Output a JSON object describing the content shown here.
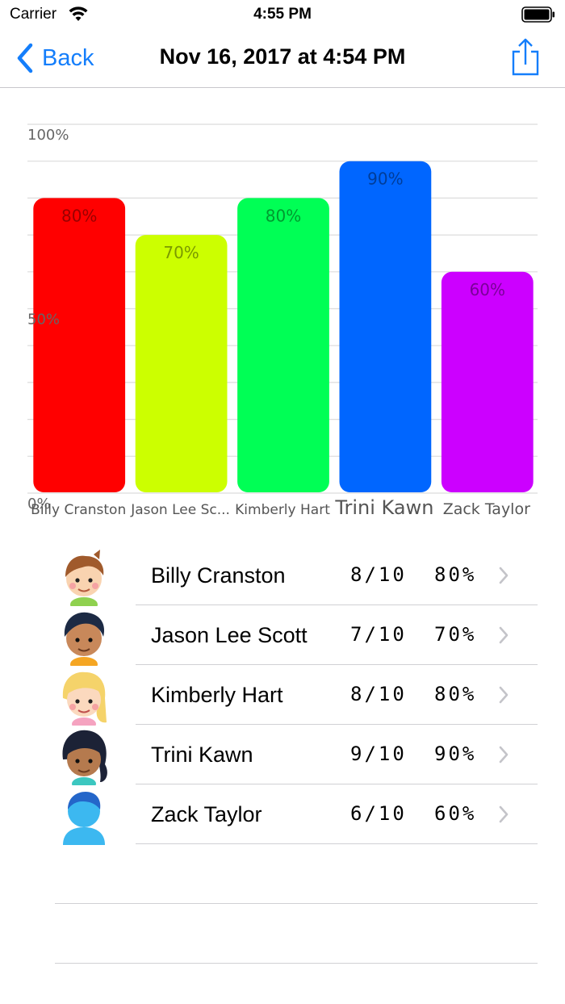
{
  "status_bar": {
    "carrier": "Carrier",
    "time": "4:55 PM"
  },
  "nav": {
    "back_label": "Back",
    "title": "Nov 16, 2017 at 4:54 PM"
  },
  "chart_data": {
    "type": "bar",
    "categories": [
      "Billy Cranston",
      "Jason Lee Sc...",
      "Kimberly Hart",
      "Trini Kawn",
      "Zack Taylor"
    ],
    "values": [
      80,
      70,
      80,
      90,
      60
    ],
    "value_labels": [
      "80%",
      "70%",
      "80%",
      "90%",
      "60%"
    ],
    "colors": [
      "#ff0000",
      "#ccff00",
      "#00ff55",
      "#0066ff",
      "#cc00ff"
    ],
    "value_label_colors": [
      "#990000",
      "#7a9900",
      "#00992f",
      "#003d99",
      "#7a0099"
    ],
    "ylim": [
      0,
      100
    ],
    "y_ticks": [
      {
        "value": 100,
        "label": "100%"
      },
      {
        "value": 50,
        "label": "50%"
      },
      {
        "value": 0,
        "label": "0%"
      }
    ],
    "grid": true,
    "xlabel": "",
    "ylabel": ""
  },
  "students": [
    {
      "name": "Billy Cranston",
      "score": "8/10",
      "percent": "80%",
      "avatar": "boy-brown-hair-avatar"
    },
    {
      "name": "Jason Lee Scott",
      "score": "7/10",
      "percent": "70%",
      "avatar": "boy-dark-hair-avatar"
    },
    {
      "name": "Kimberly Hart",
      "score": "8/10",
      "percent": "80%",
      "avatar": "girl-blonde-hair-avatar"
    },
    {
      "name": "Trini Kawn",
      "score": "9/10",
      "percent": "90%",
      "avatar": "girl-dark-hair-avatar"
    },
    {
      "name": "Zack Taylor",
      "score": "6/10",
      "percent": "60%",
      "avatar": "silhouette-avatar"
    }
  ],
  "colors": {
    "accent": "#147efb",
    "separator": "#d0d0d4"
  }
}
